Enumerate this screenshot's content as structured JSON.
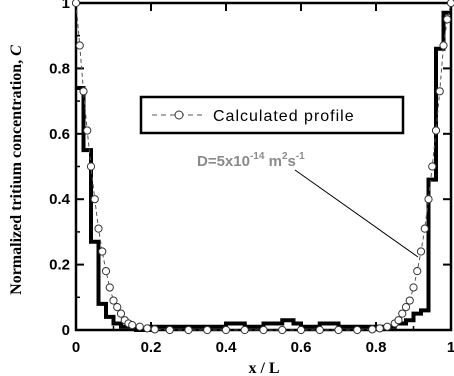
{
  "chart_data": {
    "type": "line",
    "xlabel": "x / L",
    "ylabel": "Normalized tritium concentration, C",
    "ylabel_main": "Normalized tritium concentration,",
    "ylabel_var": "C",
    "xlim": [
      0,
      1
    ],
    "ylim": [
      0,
      1
    ],
    "x_ticks": [
      {
        "value": 0,
        "label": "0"
      },
      {
        "value": 0.2,
        "label": "0.2"
      },
      {
        "value": 0.4,
        "label": "0.4"
      },
      {
        "value": 0.6,
        "label": "0.6"
      },
      {
        "value": 0.8,
        "label": "0.8"
      },
      {
        "value": 1,
        "label": "1"
      }
    ],
    "y_ticks": [
      {
        "value": 0,
        "label": "0"
      },
      {
        "value": 0.2,
        "label": "0.2"
      },
      {
        "value": 0.4,
        "label": "0.4"
      },
      {
        "value": 0.6,
        "label": "0.6"
      },
      {
        "value": 0.8,
        "label": "0.8"
      },
      {
        "value": 1,
        "label": "1"
      }
    ],
    "legend": {
      "placement": "center-right",
      "entries": [
        "Calculated profile"
      ]
    },
    "annotation": {
      "prefix": "D=5x10",
      "exp1": "-14",
      "mid": " m",
      "exp2": "2",
      "mid2": "s",
      "exp3": "-1",
      "points_to": [
        0.93,
        0.18
      ]
    },
    "series": [
      {
        "name": "",
        "style": "step",
        "x": [
          0,
          0.02,
          0.04,
          0.06,
          0.08,
          0.1,
          0.12,
          0.14,
          0.16,
          0.2,
          0.25,
          0.3,
          0.35,
          0.4,
          0.45,
          0.5,
          0.55,
          0.58,
          0.6,
          0.65,
          0.7,
          0.75,
          0.8,
          0.85,
          0.88,
          0.9,
          0.92,
          0.94,
          0.96,
          0.98,
          1.0
        ],
        "y": [
          0.74,
          0.55,
          0.27,
          0.08,
          0.04,
          0.02,
          0.01,
          0.01,
          0.0,
          0.01,
          0.01,
          0.01,
          0.01,
          0.02,
          0.01,
          0.02,
          0.03,
          0.02,
          0.01,
          0.02,
          0.01,
          0.01,
          0.01,
          0.02,
          0.03,
          0.05,
          0.06,
          0.46,
          0.86,
          0.97,
          0.97
        ]
      },
      {
        "name": "Calculated profile",
        "style": "dashed-circle",
        "x": [
          0,
          0.01,
          0.02,
          0.03,
          0.04,
          0.05,
          0.06,
          0.07,
          0.08,
          0.09,
          0.1,
          0.11,
          0.12,
          0.13,
          0.14,
          0.15,
          0.17,
          0.19,
          0.21,
          0.25,
          0.3,
          0.35,
          0.4,
          0.45,
          0.5,
          0.55,
          0.6,
          0.65,
          0.7,
          0.75,
          0.79,
          0.81,
          0.83,
          0.85,
          0.86,
          0.87,
          0.88,
          0.89,
          0.9,
          0.91,
          0.92,
          0.93,
          0.94,
          0.95,
          0.96,
          0.97,
          0.98,
          0.99,
          1.0
        ],
        "y": [
          1.0,
          0.87,
          0.73,
          0.61,
          0.5,
          0.4,
          0.31,
          0.24,
          0.18,
          0.13,
          0.09,
          0.07,
          0.05,
          0.03,
          0.02,
          0.015,
          0.01,
          0.005,
          0.002,
          0.0,
          0.0,
          0.0,
          0.0,
          0.0,
          0.0,
          0.0,
          0.0,
          0.0,
          0.0,
          0.0,
          0.002,
          0.005,
          0.01,
          0.02,
          0.03,
          0.05,
          0.07,
          0.09,
          0.13,
          0.18,
          0.24,
          0.31,
          0.4,
          0.5,
          0.61,
          0.73,
          0.87,
          0.95,
          1.0
        ]
      }
    ]
  }
}
